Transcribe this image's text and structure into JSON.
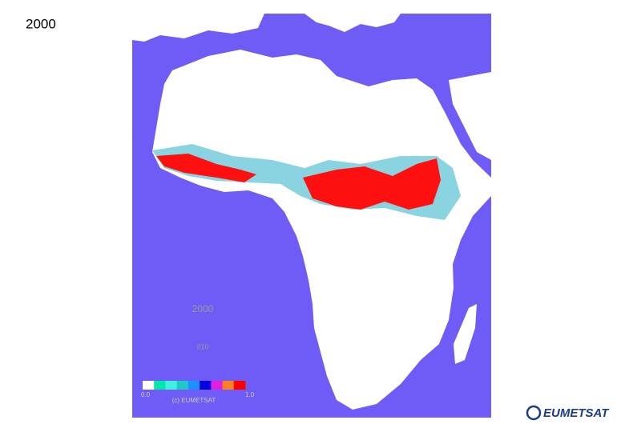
{
  "title": "2000",
  "map": {
    "year": "2000",
    "period": "010",
    "colorbar": {
      "min_label": "0.0",
      "max_label": "1.0",
      "colors": [
        "#ffffff",
        "#00e8a8",
        "#40f0e0",
        "#20c8c8",
        "#1e90ff",
        "#0000e0",
        "#e020e0",
        "#ff8020",
        "#ff0000"
      ]
    },
    "copyright": "(c) EUMETSAT"
  },
  "logo": "EUMETSAT"
}
